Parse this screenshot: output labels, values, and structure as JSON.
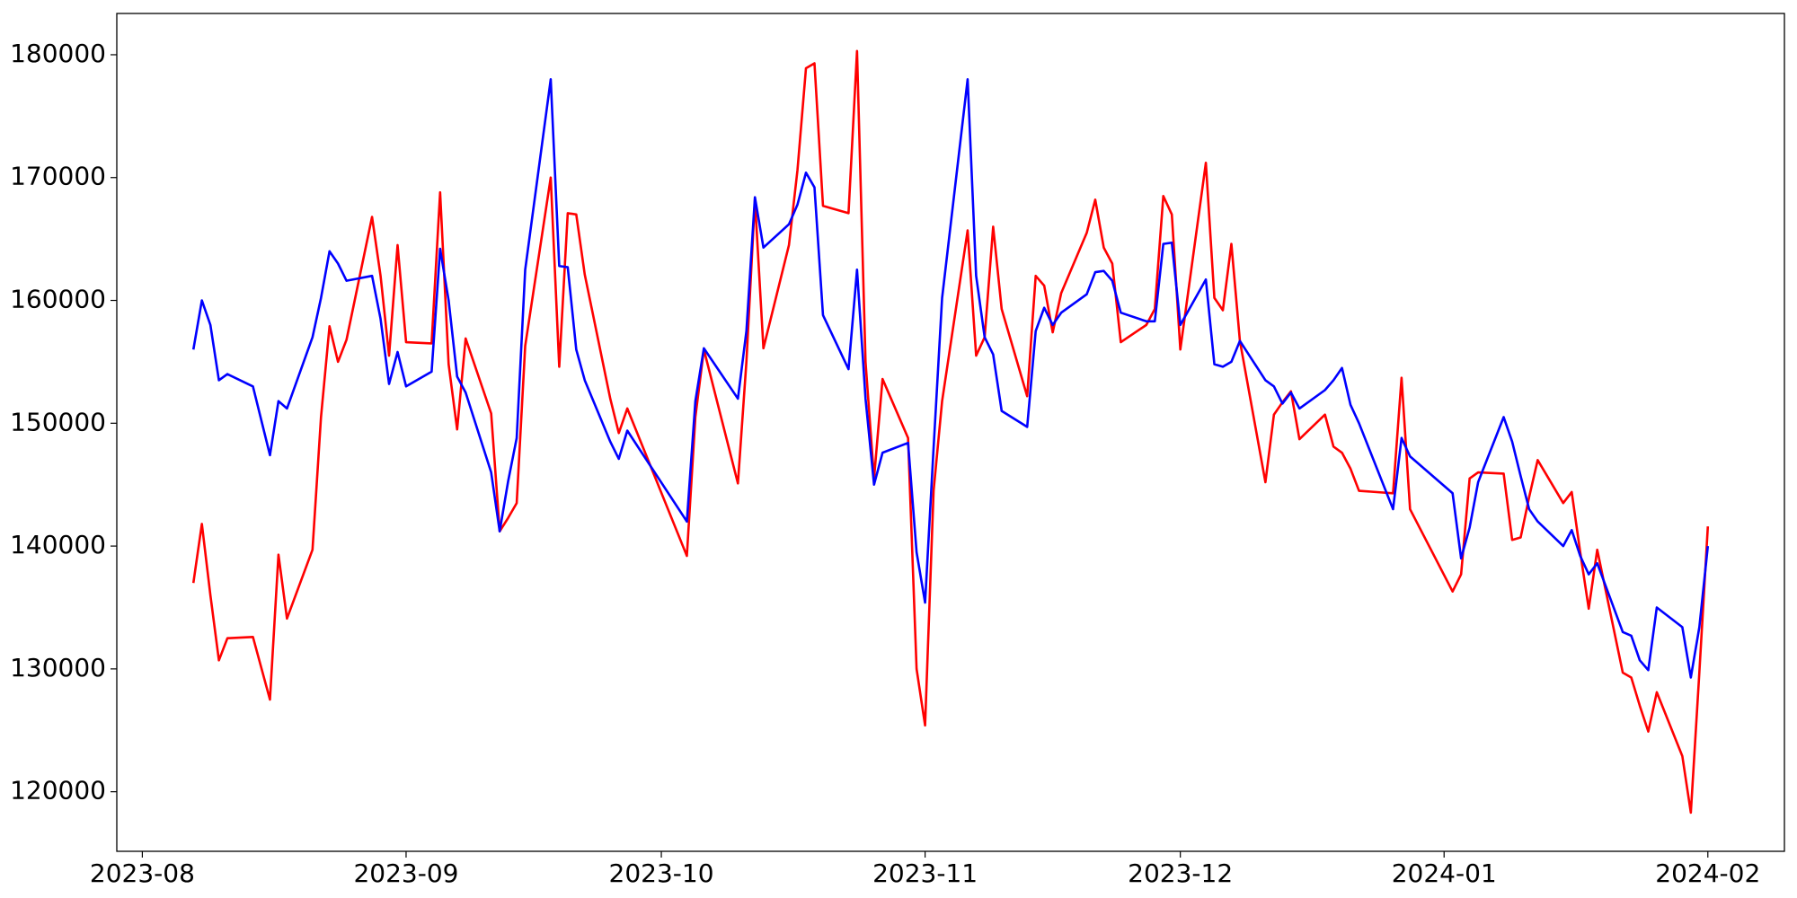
{
  "chart_data": {
    "type": "line",
    "x": [
      "2023-08-07",
      "2023-08-08",
      "2023-08-09",
      "2023-08-10",
      "2023-08-11",
      "2023-08-14",
      "2023-08-16",
      "2023-08-17",
      "2023-08-18",
      "2023-08-21",
      "2023-08-22",
      "2023-08-23",
      "2023-08-24",
      "2023-08-25",
      "2023-08-28",
      "2023-08-29",
      "2023-08-30",
      "2023-08-31",
      "2023-09-01",
      "2023-09-04",
      "2023-09-05",
      "2023-09-06",
      "2023-09-07",
      "2023-09-08",
      "2023-09-11",
      "2023-09-12",
      "2023-09-13",
      "2023-09-14",
      "2023-09-15",
      "2023-09-18",
      "2023-09-19",
      "2023-09-20",
      "2023-09-21",
      "2023-09-22",
      "2023-09-25",
      "2023-09-26",
      "2023-09-27",
      "2023-10-04",
      "2023-10-05",
      "2023-10-06",
      "2023-10-10",
      "2023-10-11",
      "2023-10-12",
      "2023-10-13",
      "2023-10-16",
      "2023-10-17",
      "2023-10-18",
      "2023-10-19",
      "2023-10-20",
      "2023-10-23",
      "2023-10-24",
      "2023-10-25",
      "2023-10-26",
      "2023-10-27",
      "2023-10-30",
      "2023-10-31",
      "2023-11-01",
      "2023-11-02",
      "2023-11-03",
      "2023-11-06",
      "2023-11-07",
      "2023-11-08",
      "2023-11-09",
      "2023-11-10",
      "2023-11-13",
      "2023-11-14",
      "2023-11-15",
      "2023-11-16",
      "2023-11-17",
      "2023-11-20",
      "2023-11-21",
      "2023-11-22",
      "2023-11-23",
      "2023-11-24",
      "2023-11-27",
      "2023-11-28",
      "2023-11-29",
      "2023-11-30",
      "2023-12-01",
      "2023-12-04",
      "2023-12-05",
      "2023-12-06",
      "2023-12-07",
      "2023-12-08",
      "2023-12-11",
      "2023-12-12",
      "2023-12-13",
      "2023-12-14",
      "2023-12-15",
      "2023-12-18",
      "2023-12-19",
      "2023-12-20",
      "2023-12-21",
      "2023-12-22",
      "2023-12-26",
      "2023-12-27",
      "2023-12-28",
      "2024-01-02",
      "2024-01-03",
      "2024-01-04",
      "2024-01-05",
      "2024-01-08",
      "2024-01-09",
      "2024-01-10",
      "2024-01-11",
      "2024-01-12",
      "2024-01-15",
      "2024-01-16",
      "2024-01-17",
      "2024-01-18",
      "2024-01-19",
      "2024-01-22",
      "2024-01-23",
      "2024-01-24",
      "2024-01-25",
      "2024-01-26",
      "2024-01-29",
      "2024-01-30",
      "2024-01-31",
      "2024-02-01"
    ],
    "series": [
      {
        "color": "#ff0000",
        "values": [
          137000,
          141800,
          136000,
          130700,
          132500,
          132600,
          127500,
          139300,
          134100,
          139700,
          150500,
          157900,
          155000,
          156800,
          166800,
          162000,
          155500,
          164500,
          156600,
          156500,
          168800,
          154800,
          149500,
          156900,
          150800,
          141200,
          142300,
          143500,
          156300,
          170000,
          154600,
          167100,
          167000,
          162100,
          152000,
          149200,
          151200,
          139200,
          150500,
          156000,
          145100,
          155000,
          168200,
          156100,
          164500,
          170600,
          178900,
          179300,
          167700,
          167100,
          180300,
          155000,
          145500,
          153600,
          148800,
          130000,
          125400,
          144500,
          151800,
          165700,
          155500,
          157000,
          166000,
          159300,
          152200,
          162000,
          161200,
          157400,
          160600,
          165500,
          168200,
          164300,
          163000,
          156600,
          158000,
          159300,
          168500,
          167000,
          156000,
          171200,
          160200,
          159200,
          164600,
          156700,
          145200,
          150700,
          151700,
          152600,
          148700,
          150700,
          148100,
          147600,
          146300,
          144500,
          144300,
          153700,
          143000,
          136300,
          137700,
          145500,
          146000,
          145900,
          140500,
          140700,
          144000,
          147000,
          143500,
          144400,
          139500,
          134900,
          139700,
          129700,
          129300,
          127000,
          124900,
          128100,
          122900,
          118300,
          129700,
          141600
        ]
      },
      {
        "color": "#0000ff",
        "values": [
          156000,
          160000,
          158000,
          153500,
          154000,
          153000,
          147400,
          151800,
          151200,
          157000,
          160200,
          164000,
          163000,
          161600,
          162000,
          158500,
          153200,
          155800,
          153000,
          154200,
          164200,
          160000,
          153800,
          152500,
          146000,
          141200,
          145300,
          148800,
          162500,
          178000,
          162800,
          162700,
          156000,
          153500,
          148500,
          147100,
          149400,
          142000,
          151800,
          156100,
          152000,
          157500,
          168400,
          164300,
          166200,
          167800,
          170400,
          169200,
          158800,
          154400,
          162500,
          152000,
          145000,
          147600,
          148400,
          139500,
          135400,
          148000,
          160200,
          178000,
          162000,
          157000,
          155600,
          151000,
          149700,
          157500,
          159400,
          158000,
          159000,
          160500,
          162300,
          162400,
          161600,
          159000,
          158300,
          158300,
          164600,
          164700,
          158000,
          161700,
          154800,
          154600,
          155000,
          156700,
          153500,
          153000,
          151600,
          152500,
          151200,
          152700,
          153500,
          154500,
          151500,
          150000,
          143000,
          148800,
          147300,
          144300,
          139000,
          141500,
          145200,
          150500,
          148500,
          145700,
          143000,
          142000,
          140000,
          141300,
          139200,
          137700,
          138600,
          133000,
          132700,
          130700,
          129900,
          135000,
          133400,
          129300,
          133400,
          140000
        ]
      }
    ],
    "xlim": [
      "2023-07-29",
      "2024-02-10"
    ],
    "xticks": [
      "2023-08",
      "2023-09",
      "2023-10",
      "2023-11",
      "2023-12",
      "2024-01",
      "2024-02"
    ],
    "ylim": [
      115150,
      183360
    ],
    "yticks": [
      120000,
      130000,
      140000,
      150000,
      160000,
      170000,
      180000
    ],
    "grid": false
  }
}
